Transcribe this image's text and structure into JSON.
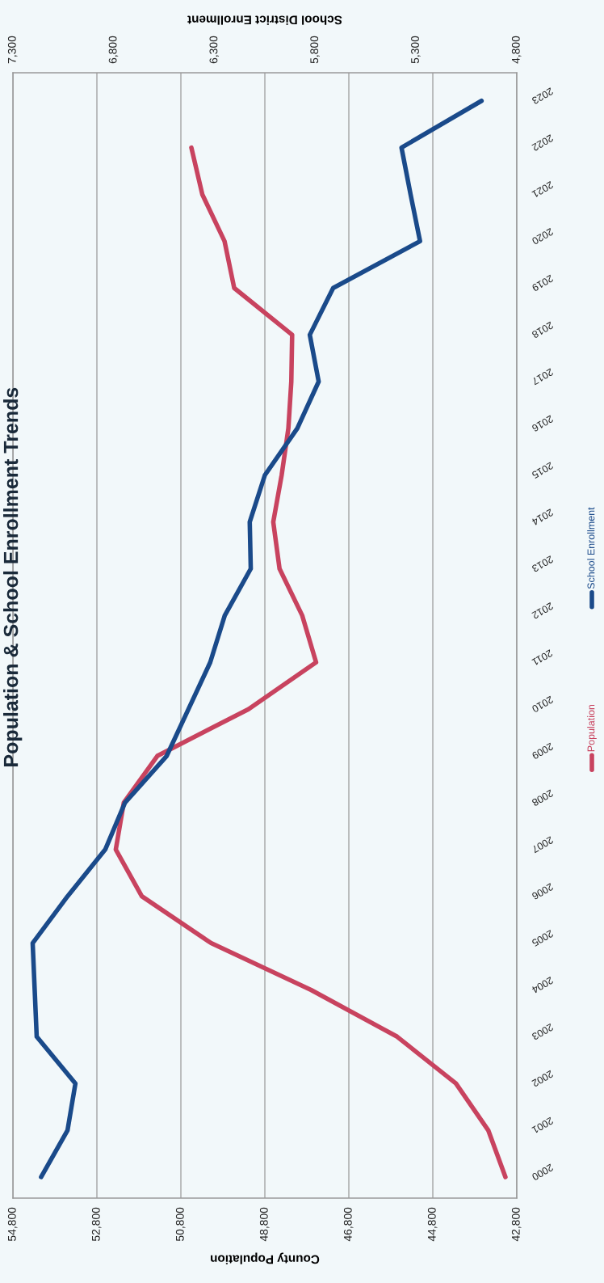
{
  "chart_data": {
    "type": "line",
    "orientation": "horizontal",
    "title": "Population & School Enrollment Trends",
    "xlabel": "County Population",
    "x2label": "School District Enrollment",
    "categories": [
      "2023",
      "2022",
      "2021",
      "2020",
      "2019",
      "2018",
      "2017",
      "2016",
      "2015",
      "2014",
      "2013",
      "2012",
      "2011",
      "2010",
      "2009",
      "2008",
      "2007",
      "2006",
      "2005",
      "2004",
      "2003",
      "2002",
      "2001",
      "2000"
    ],
    "series": [
      {
        "name": "Population",
        "color": "#c8435f",
        "values": [
          null,
          50550,
          50290,
          49760,
          49530,
          48150,
          48170,
          48240,
          48400,
          48600,
          48450,
          47910,
          47580,
          49190,
          51360,
          52160,
          52350,
          51730,
          50080,
          47700,
          45650,
          44250,
          43480,
          43070
        ]
      },
      {
        "name": "School Enrollment",
        "color": "#1a4a8a",
        "axis": "x2",
        "values": [
          4975,
          5372,
          5327,
          5280,
          5711,
          5827,
          5783,
          5889,
          6050,
          6125,
          6120,
          6249,
          6321,
          6429,
          6537,
          6744,
          6842,
          7029,
          7202,
          7192,
          7182,
          6990,
          7029,
          7160
        ]
      }
    ],
    "xlim": [
      54800,
      42800
    ],
    "xticks": [
      {
        "value": 54800,
        "label": "54,800"
      },
      {
        "value": 52800,
        "label": "52,800"
      },
      {
        "value": 50800,
        "label": "50,800"
      },
      {
        "value": 48800,
        "label": "48,800"
      },
      {
        "value": 46800,
        "label": "46,800"
      },
      {
        "value": 44800,
        "label": "44,800"
      },
      {
        "value": 42800,
        "label": "42,800"
      }
    ],
    "x2lim": [
      7300,
      4800
    ],
    "x2ticks": [
      {
        "value": 7300,
        "label": "7,300"
      },
      {
        "value": 6800,
        "label": "6,800"
      },
      {
        "value": 6300,
        "label": "6,300"
      },
      {
        "value": 5800,
        "label": "5,800"
      },
      {
        "value": 5300,
        "label": "5,300"
      },
      {
        "value": 4800,
        "label": "4,800"
      }
    ],
    "grid": "x",
    "legend": "right"
  }
}
